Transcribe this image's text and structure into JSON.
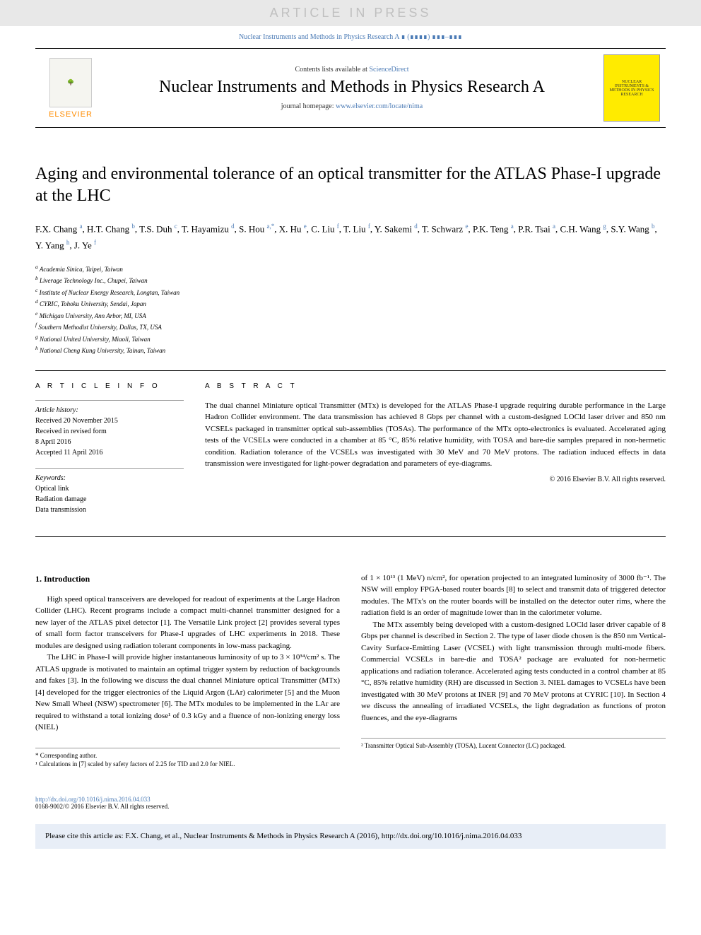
{
  "banner": "ARTICLE IN PRESS",
  "citation_top": "Nuclear Instruments and Methods in Physics Research A ∎ (∎∎∎∎) ∎∎∎–∎∎∎",
  "header": {
    "contents_prefix": "Contents lists available at ",
    "contents_link": "ScienceDirect",
    "journal_title": "Nuclear Instruments and Methods in Physics Research A",
    "homepage_prefix": "journal homepage: ",
    "homepage_link": "www.elsevier.com/locate/nima",
    "elsevier": "ELSEVIER",
    "cover_text": "NUCLEAR INSTRUMENTS & METHODS IN PHYSICS RESEARCH"
  },
  "title": "Aging and environmental tolerance of an optical transmitter for the ATLAS Phase-I upgrade at the LHC",
  "authors_html": "F.X. Chang <sup>a</sup>, H.T. Chang <sup>b</sup>, T.S. Duh <sup>c</sup>, T. Hayamizu <sup>d</sup>, S. Hou <sup>a,*</sup>, X. Hu <sup>e</sup>, C. Liu <sup>f</sup>, T. Liu <sup>f</sup>, Y. Sakemi <sup>d</sup>, T. Schwarz <sup>e</sup>, P.K. Teng <sup>a</sup>, P.R. Tsai <sup>a</sup>, C.H. Wang <sup>g</sup>, S.Y. Wang <sup>b</sup>, Y. Yang <sup>h</sup>, J. Ye <sup>f</sup>",
  "affiliations": [
    "a Academia Sinica, Taipei, Taiwan",
    "b Liverage Technology Inc., Chupei, Taiwan",
    "c Institute of Nuclear Energy Research, Longtan, Taiwan",
    "d CYRIC, Tohoku University, Sendai, Japan",
    "e Michigan University, Ann Arbor, MI, USA",
    "f Southern Methodist University, Dallas, TX, USA",
    "g National United University, Miaoli, Taiwan",
    "h National Cheng Kung University, Tainan, Taiwan"
  ],
  "info": {
    "heading": "A R T I C L E  I N F O",
    "history_label": "Article history:",
    "history": [
      "Received 20 November 2015",
      "Received in revised form",
      "8 April 2016",
      "Accepted 11 April 2016"
    ],
    "keywords_label": "Keywords:",
    "keywords": [
      "Optical link",
      "Radiation damage",
      "Data transmission"
    ]
  },
  "abstract": {
    "heading": "A B S T R A C T",
    "text": "The dual channel Miniature optical Transmitter (MTx) is developed for the ATLAS Phase-I upgrade requiring durable performance in the Large Hadron Collider environment. The data transmission has achieved 8 Gbps per channel with a custom-designed LOCld laser driver and 850 nm VCSELs packaged in transmitter optical sub-assemblies (TOSAs). The performance of the MTx opto-electronics is evaluated. Accelerated aging tests of the VCSELs were conducted in a chamber at 85 °C, 85% relative humidity, with TOSA and bare-die samples prepared in non-hermetic condition. Radiation tolerance of the VCSELs was investigated with 30 MeV and 70 MeV protons. The radiation induced effects in data transmission were investigated for light-power degradation and parameters of eye-diagrams.",
    "copyright": "© 2016 Elsevier B.V. All rights reserved."
  },
  "body": {
    "section1_heading": "1. Introduction",
    "col1_p1": "High speed optical transceivers are developed for readout of experiments at the Large Hadron Collider (LHC). Recent programs include a compact multi-channel transmitter designed for a new layer of the ATLAS pixel detector [1]. The Versatile Link project [2] provides several types of small form factor transceivers for Phase-I upgrades of LHC experiments in 2018. These modules are designed using radiation tolerant components in low-mass packaging.",
    "col1_p2": "The LHC in Phase-I will provide higher instantaneous luminosity of up to 3 × 10³⁴/cm² s. The ATLAS upgrade is motivated to maintain an optimal trigger system by reduction of backgrounds and fakes [3]. In the following we discuss the dual channel Miniature optical Transmitter (MTx) [4] developed for the trigger electronics of the Liquid Argon (LAr) calorimeter [5] and the Muon New Small Wheel (NSW) spectrometer [6]. The MTx modules to be implemented in the LAr are required to withstand a total ionizing dose¹ of 0.3 kGy and a fluence of non-ionizing energy loss (NIEL)",
    "col2_p1": "of 1 × 10¹³ (1 MeV) n/cm², for operation projected to an integrated luminosity of 3000 fb⁻¹. The NSW will employ FPGA-based router boards [8] to select and transmit data of triggered detector modules. The MTx's on the router boards will be installed on the detector outer rims, where the radiation field is an order of magnitude lower than in the calorimeter volume.",
    "col2_p2": "The MTx assembly being developed with a custom-designed LOCld laser driver capable of 8 Gbps per channel is described in Section 2. The type of laser diode chosen is the 850 nm Vertical-Cavity Surface-Emitting Laser (VCSEL) with light transmission through multi-mode fibers. Commercial VCSELs in bare-die and TOSA² package are evaluated for non-hermetic applications and radiation tolerance. Accelerated aging tests conducted in a control chamber at 85 °C, 85% relative humidity (RH) are discussed in Section 3. NIEL damages to VCSELs have been investigated with 30 MeV protons at INER [9] and 70 MeV protons at CYRIC [10]. In Section 4 we discuss the annealing of irradiated VCSELs, the light degradation as functions of proton fluences, and the eye-diagrams"
  },
  "footnotes": {
    "corresponding": "* Corresponding author.",
    "fn1": "¹ Calculations in [7] scaled by safety factors of 2.25 for TID and 2.0 for NIEL.",
    "fn2": "² Transmitter Optical Sub-Assembly (TOSA), Lucent Connector (LC) packaged."
  },
  "doi": {
    "link": "http://dx.doi.org/10.1016/j.nima.2016.04.033",
    "issn": "0168-9002/© 2016 Elsevier B.V. All rights reserved."
  },
  "cite_box": "Please cite this article as: F.X. Chang, et al., Nuclear Instruments & Methods in Physics Research A (2016), http://dx.doi.org/10.1016/j.nima.2016.04.033"
}
